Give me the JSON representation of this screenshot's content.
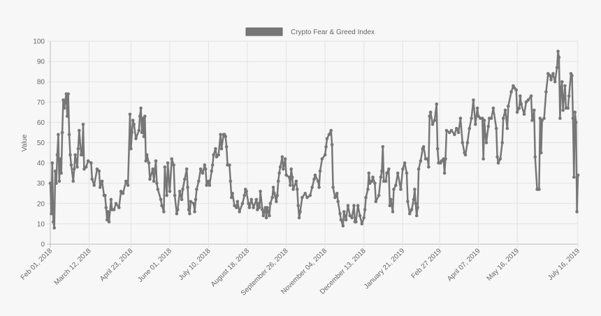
{
  "chart_data": {
    "type": "line",
    "legend": {
      "position": "top",
      "entries": [
        "Crypto Fear & Greed Index"
      ]
    },
    "series": [
      {
        "name": "Crypto Fear & Greed Index",
        "color": "#777777"
      }
    ],
    "ylabel": "Value",
    "xlabel": "",
    "ylim": [
      0,
      100
    ],
    "yticks": [
      0,
      10,
      20,
      30,
      40,
      50,
      60,
      70,
      80,
      90,
      100
    ],
    "xlim": [
      "2018-02-01",
      "2019-07-16"
    ],
    "xticks": [
      {
        "date": "2018-02-01",
        "label": "Feb 01, 2018"
      },
      {
        "date": "2018-03-12",
        "label": "March 12, 2018"
      },
      {
        "date": "2018-04-23",
        "label": "April 23, 2018"
      },
      {
        "date": "2018-06-01",
        "label": "June 01, 2018"
      },
      {
        "date": "2018-07-10",
        "label": "July 10, 2018"
      },
      {
        "date": "2018-08-18",
        "label": "August 18, 2018"
      },
      {
        "date": "2018-09-26",
        "label": "September 26, 2018"
      },
      {
        "date": "2018-11-04",
        "label": "November 04, 2018"
      },
      {
        "date": "2018-12-13",
        "label": "December 13, 2018"
      },
      {
        "date": "2019-01-21",
        "label": "January 21, 2019"
      },
      {
        "date": "2019-02-27",
        "label": "Feb 27 2019"
      },
      {
        "date": "2019-04-07",
        "label": "April 07, 2019"
      },
      {
        "date": "2019-05-16",
        "label": "May 16, 2019"
      },
      {
        "date": "2019-07-16",
        "label": "July 16, 2019"
      }
    ],
    "grid": true,
    "points": [
      [
        "2018-02-01",
        30
      ],
      [
        "2018-02-02",
        15
      ],
      [
        "2018-02-03",
        40
      ],
      [
        "2018-02-04",
        11
      ],
      [
        "2018-02-05",
        8
      ],
      [
        "2018-02-06",
        36
      ],
      [
        "2018-02-07",
        30
      ],
      [
        "2018-02-08",
        44
      ],
      [
        "2018-02-09",
        54
      ],
      [
        "2018-02-10",
        31
      ],
      [
        "2018-02-11",
        42
      ],
      [
        "2018-02-12",
        35
      ],
      [
        "2018-02-13",
        55
      ],
      [
        "2018-02-14",
        71
      ],
      [
        "2018-02-15",
        67
      ],
      [
        "2018-02-17",
        74
      ],
      [
        "2018-02-18",
        63
      ],
      [
        "2018-02-19",
        74
      ],
      [
        "2018-02-20",
        54
      ],
      [
        "2018-02-21",
        44
      ],
      [
        "2018-02-22",
        39
      ],
      [
        "2018-02-24",
        31
      ],
      [
        "2018-02-25",
        37
      ],
      [
        "2018-02-26",
        44
      ],
      [
        "2018-02-28",
        38
      ],
      [
        "2018-03-01",
        47
      ],
      [
        "2018-03-02",
        56
      ],
      [
        "2018-03-04",
        44
      ],
      [
        "2018-03-05",
        44
      ],
      [
        "2018-03-06",
        59
      ],
      [
        "2018-03-07",
        37
      ],
      [
        "2018-03-09",
        38
      ],
      [
        "2018-03-11",
        41
      ],
      [
        "2018-03-14",
        40
      ],
      [
        "2018-03-15",
        32
      ],
      [
        "2018-03-17",
        29
      ],
      [
        "2018-03-20",
        37
      ],
      [
        "2018-03-22",
        36
      ],
      [
        "2018-03-23",
        28
      ],
      [
        "2018-03-25",
        31
      ],
      [
        "2018-03-27",
        24
      ],
      [
        "2018-03-28",
        24
      ],
      [
        "2018-03-29",
        18
      ],
      [
        "2018-03-30",
        12
      ],
      [
        "2018-03-31",
        16
      ],
      [
        "2018-04-01",
        11
      ],
      [
        "2018-04-03",
        22
      ],
      [
        "2018-04-04",
        17
      ],
      [
        "2018-04-06",
        17
      ],
      [
        "2018-04-08",
        20
      ],
      [
        "2018-04-11",
        18
      ],
      [
        "2018-04-13",
        26
      ],
      [
        "2018-04-15",
        25
      ],
      [
        "2018-04-18",
        31
      ],
      [
        "2018-04-20",
        29
      ],
      [
        "2018-04-22",
        64
      ],
      [
        "2018-04-23",
        47
      ],
      [
        "2018-04-24",
        55
      ],
      [
        "2018-04-25",
        61
      ],
      [
        "2018-04-26",
        59
      ],
      [
        "2018-04-28",
        52
      ],
      [
        "2018-05-01",
        56
      ],
      [
        "2018-05-02",
        63
      ],
      [
        "2018-05-03",
        67
      ],
      [
        "2018-05-04",
        55
      ],
      [
        "2018-05-05",
        62
      ],
      [
        "2018-05-06",
        53
      ],
      [
        "2018-05-07",
        63
      ],
      [
        "2018-05-08",
        41
      ],
      [
        "2018-05-09",
        44
      ],
      [
        "2018-05-11",
        40
      ],
      [
        "2018-05-12",
        32
      ],
      [
        "2018-05-15",
        37
      ],
      [
        "2018-05-16",
        31
      ],
      [
        "2018-05-18",
        41
      ],
      [
        "2018-05-19",
        30
      ],
      [
        "2018-05-20",
        27
      ],
      [
        "2018-05-23",
        22
      ],
      [
        "2018-05-24",
        19
      ],
      [
        "2018-05-26",
        16
      ],
      [
        "2018-05-27",
        38
      ],
      [
        "2018-05-29",
        24
      ],
      [
        "2018-05-30",
        40
      ],
      [
        "2018-06-01",
        26
      ],
      [
        "2018-06-03",
        42
      ],
      [
        "2018-06-05",
        39
      ],
      [
        "2018-06-06",
        24
      ],
      [
        "2018-06-08",
        15
      ],
      [
        "2018-06-09",
        17
      ],
      [
        "2018-06-11",
        26
      ],
      [
        "2018-06-13",
        22
      ],
      [
        "2018-06-14",
        27
      ],
      [
        "2018-06-16",
        32
      ],
      [
        "2018-06-18",
        37
      ],
      [
        "2018-06-19",
        28
      ],
      [
        "2018-06-20",
        17
      ],
      [
        "2018-06-21",
        15
      ],
      [
        "2018-06-22",
        21
      ],
      [
        "2018-06-25",
        20
      ],
      [
        "2018-06-26",
        16
      ],
      [
        "2018-06-27",
        22
      ],
      [
        "2018-06-28",
        27
      ],
      [
        "2018-06-30",
        31
      ],
      [
        "2018-07-02",
        37
      ],
      [
        "2018-07-04",
        35
      ],
      [
        "2018-07-06",
        39
      ],
      [
        "2018-07-07",
        37
      ],
      [
        "2018-07-08",
        29
      ],
      [
        "2018-07-10",
        31
      ],
      [
        "2018-07-11",
        29
      ],
      [
        "2018-07-13",
        36
      ],
      [
        "2018-07-14",
        39
      ],
      [
        "2018-07-15",
        44
      ],
      [
        "2018-07-17",
        47
      ],
      [
        "2018-07-18",
        43
      ],
      [
        "2018-07-20",
        44
      ],
      [
        "2018-07-22",
        54
      ],
      [
        "2018-07-23",
        47
      ],
      [
        "2018-07-25",
        54
      ],
      [
        "2018-07-26",
        54
      ],
      [
        "2018-07-27",
        53
      ],
      [
        "2018-07-28",
        48
      ],
      [
        "2018-07-29",
        39
      ],
      [
        "2018-07-31",
        39
      ],
      [
        "2018-08-01",
        31
      ],
      [
        "2018-08-02",
        23
      ],
      [
        "2018-08-03",
        25
      ],
      [
        "2018-08-05",
        19
      ],
      [
        "2018-08-07",
        18
      ],
      [
        "2018-08-08",
        21
      ],
      [
        "2018-08-10",
        16
      ],
      [
        "2018-08-13",
        20
      ],
      [
        "2018-08-15",
        24
      ],
      [
        "2018-08-16",
        27
      ],
      [
        "2018-08-17",
        26
      ],
      [
        "2018-08-19",
        20
      ],
      [
        "2018-08-20",
        18
      ],
      [
        "2018-08-22",
        22
      ],
      [
        "2018-08-24",
        18
      ],
      [
        "2018-08-27",
        22
      ],
      [
        "2018-08-28",
        17
      ],
      [
        "2018-08-29",
        20
      ],
      [
        "2018-08-30",
        18
      ],
      [
        "2018-08-31",
        26
      ],
      [
        "2018-09-02",
        17
      ],
      [
        "2018-09-03",
        14
      ],
      [
        "2018-09-05",
        18
      ],
      [
        "2018-09-06",
        13
      ],
      [
        "2018-09-07",
        18
      ],
      [
        "2018-09-09",
        14
      ],
      [
        "2018-09-10",
        20
      ],
      [
        "2018-09-12",
        23
      ],
      [
        "2018-09-13",
        28
      ],
      [
        "2018-09-14",
        25
      ],
      [
        "2018-09-16",
        21
      ],
      [
        "2018-09-17",
        24
      ],
      [
        "2018-09-18",
        31
      ],
      [
        "2018-09-19",
        35
      ],
      [
        "2018-09-20",
        38
      ],
      [
        "2018-09-22",
        43
      ],
      [
        "2018-09-23",
        37
      ],
      [
        "2018-09-25",
        42
      ],
      [
        "2018-09-26",
        34
      ],
      [
        "2018-09-29",
        33
      ],
      [
        "2018-09-30",
        29
      ],
      [
        "2018-10-01",
        37
      ],
      [
        "2018-10-02",
        33
      ],
      [
        "2018-10-03",
        27
      ],
      [
        "2018-10-06",
        31
      ],
      [
        "2018-10-07",
        27
      ],
      [
        "2018-10-08",
        19
      ],
      [
        "2018-10-09",
        13
      ],
      [
        "2018-10-10",
        16
      ],
      [
        "2018-10-12",
        23
      ],
      [
        "2018-10-15",
        25
      ],
      [
        "2018-10-17",
        23
      ],
      [
        "2018-10-20",
        24
      ],
      [
        "2018-10-22",
        28
      ],
      [
        "2018-10-24",
        32
      ],
      [
        "2018-10-25",
        34
      ],
      [
        "2018-10-28",
        31
      ],
      [
        "2018-10-29",
        28
      ],
      [
        "2018-10-30",
        36
      ],
      [
        "2018-11-01",
        42
      ],
      [
        "2018-11-04",
        44
      ],
      [
        "2018-11-05",
        48
      ],
      [
        "2018-11-06",
        52
      ],
      [
        "2018-11-08",
        54
      ],
      [
        "2018-11-10",
        56
      ],
      [
        "2018-11-11",
        49
      ],
      [
        "2018-11-12",
        28
      ],
      [
        "2018-11-14",
        23
      ],
      [
        "2018-11-16",
        25
      ],
      [
        "2018-11-17",
        21
      ],
      [
        "2018-11-19",
        15
      ],
      [
        "2018-11-20",
        12
      ],
      [
        "2018-11-22",
        9
      ],
      [
        "2018-11-23",
        16
      ],
      [
        "2018-11-25",
        12
      ],
      [
        "2018-11-27",
        19
      ],
      [
        "2018-11-29",
        14
      ],
      [
        "2018-12-01",
        13
      ],
      [
        "2018-12-03",
        19
      ],
      [
        "2018-12-04",
        11
      ],
      [
        "2018-12-05",
        11
      ],
      [
        "2018-12-07",
        19
      ],
      [
        "2018-12-09",
        14
      ],
      [
        "2018-12-11",
        10
      ],
      [
        "2018-12-13",
        13
      ],
      [
        "2018-12-14",
        17
      ],
      [
        "2018-12-15",
        23
      ],
      [
        "2018-12-17",
        27
      ],
      [
        "2018-12-18",
        35
      ],
      [
        "2018-12-19",
        30
      ],
      [
        "2018-12-21",
        31
      ],
      [
        "2018-12-22",
        33
      ],
      [
        "2018-12-24",
        30
      ],
      [
        "2018-12-25",
        21
      ],
      [
        "2018-12-28",
        24
      ],
      [
        "2018-12-30",
        33
      ],
      [
        "2018-12-31",
        36
      ],
      [
        "2019-01-01",
        48
      ],
      [
        "2019-01-02",
        31
      ],
      [
        "2019-01-04",
        31
      ],
      [
        "2019-01-05",
        35
      ],
      [
        "2019-01-07",
        37
      ],
      [
        "2019-01-08",
        19
      ],
      [
        "2019-01-09",
        22
      ],
      [
        "2019-01-11",
        16
      ],
      [
        "2019-01-12",
        27
      ],
      [
        "2019-01-14",
        29
      ],
      [
        "2019-01-16",
        35
      ],
      [
        "2019-01-19",
        27
      ],
      [
        "2019-01-21",
        37
      ],
      [
        "2019-01-23",
        40
      ],
      [
        "2019-01-25",
        35
      ],
      [
        "2019-01-26",
        21
      ],
      [
        "2019-01-28",
        15
      ],
      [
        "2019-01-30",
        17
      ],
      [
        "2019-02-01",
        22
      ],
      [
        "2019-02-02",
        27
      ],
      [
        "2019-02-03",
        20
      ],
      [
        "2019-02-04",
        14
      ],
      [
        "2019-02-05",
        18
      ],
      [
        "2019-02-06",
        37
      ],
      [
        "2019-02-08",
        41
      ],
      [
        "2019-02-10",
        47
      ],
      [
        "2019-02-11",
        48
      ],
      [
        "2019-02-13",
        42
      ],
      [
        "2019-02-15",
        42
      ],
      [
        "2019-02-16",
        38
      ],
      [
        "2019-02-17",
        63
      ],
      [
        "2019-02-18",
        65
      ],
      [
        "2019-02-20",
        59
      ],
      [
        "2019-02-22",
        61
      ],
      [
        "2019-02-24",
        69
      ],
      [
        "2019-02-25",
        47
      ],
      [
        "2019-02-26",
        40
      ],
      [
        "2019-02-28",
        40
      ],
      [
        "2019-03-01",
        41
      ],
      [
        "2019-03-03",
        42
      ],
      [
        "2019-03-04",
        35
      ],
      [
        "2019-03-05",
        42
      ],
      [
        "2019-03-06",
        56
      ],
      [
        "2019-03-09",
        55
      ],
      [
        "2019-03-11",
        56
      ],
      [
        "2019-03-14",
        54
      ],
      [
        "2019-03-16",
        57
      ],
      [
        "2019-03-18",
        55
      ],
      [
        "2019-03-20",
        62
      ],
      [
        "2019-03-22",
        50
      ],
      [
        "2019-03-24",
        45
      ],
      [
        "2019-03-25",
        44
      ],
      [
        "2019-03-27",
        50
      ],
      [
        "2019-03-29",
        57
      ],
      [
        "2019-03-31",
        62
      ],
      [
        "2019-04-02",
        71
      ],
      [
        "2019-04-04",
        59
      ],
      [
        "2019-04-06",
        67
      ],
      [
        "2019-04-07",
        63
      ],
      [
        "2019-04-09",
        62
      ],
      [
        "2019-04-11",
        62
      ],
      [
        "2019-04-12",
        42
      ],
      [
        "2019-04-13",
        61
      ],
      [
        "2019-04-14",
        54
      ],
      [
        "2019-04-15",
        50
      ],
      [
        "2019-04-17",
        58
      ],
      [
        "2019-04-18",
        62
      ],
      [
        "2019-04-20",
        62
      ],
      [
        "2019-04-22",
        67
      ],
      [
        "2019-04-25",
        57
      ],
      [
        "2019-04-26",
        43
      ],
      [
        "2019-04-27",
        40
      ],
      [
        "2019-04-29",
        42
      ],
      [
        "2019-05-01",
        50
      ],
      [
        "2019-05-02",
        62
      ],
      [
        "2019-05-04",
        66
      ],
      [
        "2019-05-06",
        57
      ],
      [
        "2019-05-07",
        68
      ],
      [
        "2019-05-10",
        75
      ],
      [
        "2019-05-12",
        78
      ],
      [
        "2019-05-13",
        77
      ],
      [
        "2019-05-15",
        76
      ],
      [
        "2019-05-16",
        65
      ],
      [
        "2019-05-18",
        67
      ],
      [
        "2019-05-19",
        73
      ],
      [
        "2019-05-20",
        69
      ],
      [
        "2019-05-23",
        64
      ],
      [
        "2019-05-25",
        70
      ],
      [
        "2019-05-27",
        71
      ],
      [
        "2019-05-30",
        73
      ],
      [
        "2019-05-31",
        61
      ],
      [
        "2019-06-01",
        62
      ],
      [
        "2019-06-02",
        66
      ],
      [
        "2019-06-03",
        43
      ],
      [
        "2019-06-05",
        27
      ],
      [
        "2019-06-06",
        27
      ],
      [
        "2019-06-07",
        27
      ],
      [
        "2019-06-08",
        62
      ],
      [
        "2019-06-09",
        45
      ],
      [
        "2019-06-10",
        61
      ],
      [
        "2019-06-12",
        62
      ],
      [
        "2019-06-14",
        75
      ],
      [
        "2019-06-16",
        84
      ],
      [
        "2019-06-18",
        83
      ],
      [
        "2019-06-19",
        81
      ],
      [
        "2019-06-21",
        84
      ],
      [
        "2019-06-23",
        80
      ],
      [
        "2019-06-25",
        87
      ],
      [
        "2019-06-26",
        95
      ],
      [
        "2019-06-27",
        92
      ],
      [
        "2019-06-28",
        62
      ],
      [
        "2019-06-29",
        77
      ],
      [
        "2019-06-30",
        80
      ],
      [
        "2019-07-01",
        66
      ],
      [
        "2019-07-03",
        78
      ],
      [
        "2019-07-04",
        67
      ],
      [
        "2019-07-06",
        67
      ],
      [
        "2019-07-07",
        73
      ],
      [
        "2019-07-09",
        84
      ],
      [
        "2019-07-10",
        83
      ],
      [
        "2019-07-11",
        62
      ],
      [
        "2019-07-12",
        33
      ],
      [
        "2019-07-13",
        65
      ],
      [
        "2019-07-14",
        60
      ],
      [
        "2019-07-15",
        16
      ],
      [
        "2019-07-16",
        34
      ]
    ]
  }
}
